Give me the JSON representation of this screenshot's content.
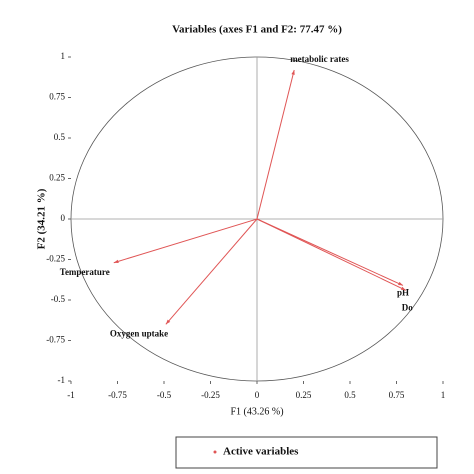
{
  "chart_data": {
    "type": "vector",
    "title": "Variables (axes F1 and F2: 77.47 %)",
    "x_label": "F1 (43.26 %)",
    "y_label": "F2 (34.21 %)",
    "labels": [
      "metabolic rates",
      "pH",
      "Do",
      "Temperature",
      "Oxygen uptake"
    ],
    "x": [
      0.2,
      0.785,
      0.8,
      -0.77,
      -0.49
    ],
    "values": [
      0.92,
      -0.41,
      -0.44,
      -0.27,
      -0.65
    ],
    "color": "#e05555",
    "xlim": [
      -1,
      1
    ],
    "ylim": [
      -1,
      1
    ],
    "xticks": [
      -1,
      -0.75,
      -0.5,
      -0.25,
      0,
      0.25,
      0.5,
      0.75,
      1
    ],
    "yticks": [
      -1,
      -0.75,
      -0.5,
      -0.25,
      0,
      0.25,
      0.5,
      0.75,
      1
    ],
    "legend": "Active variables",
    "legend_position": "bottom"
  }
}
